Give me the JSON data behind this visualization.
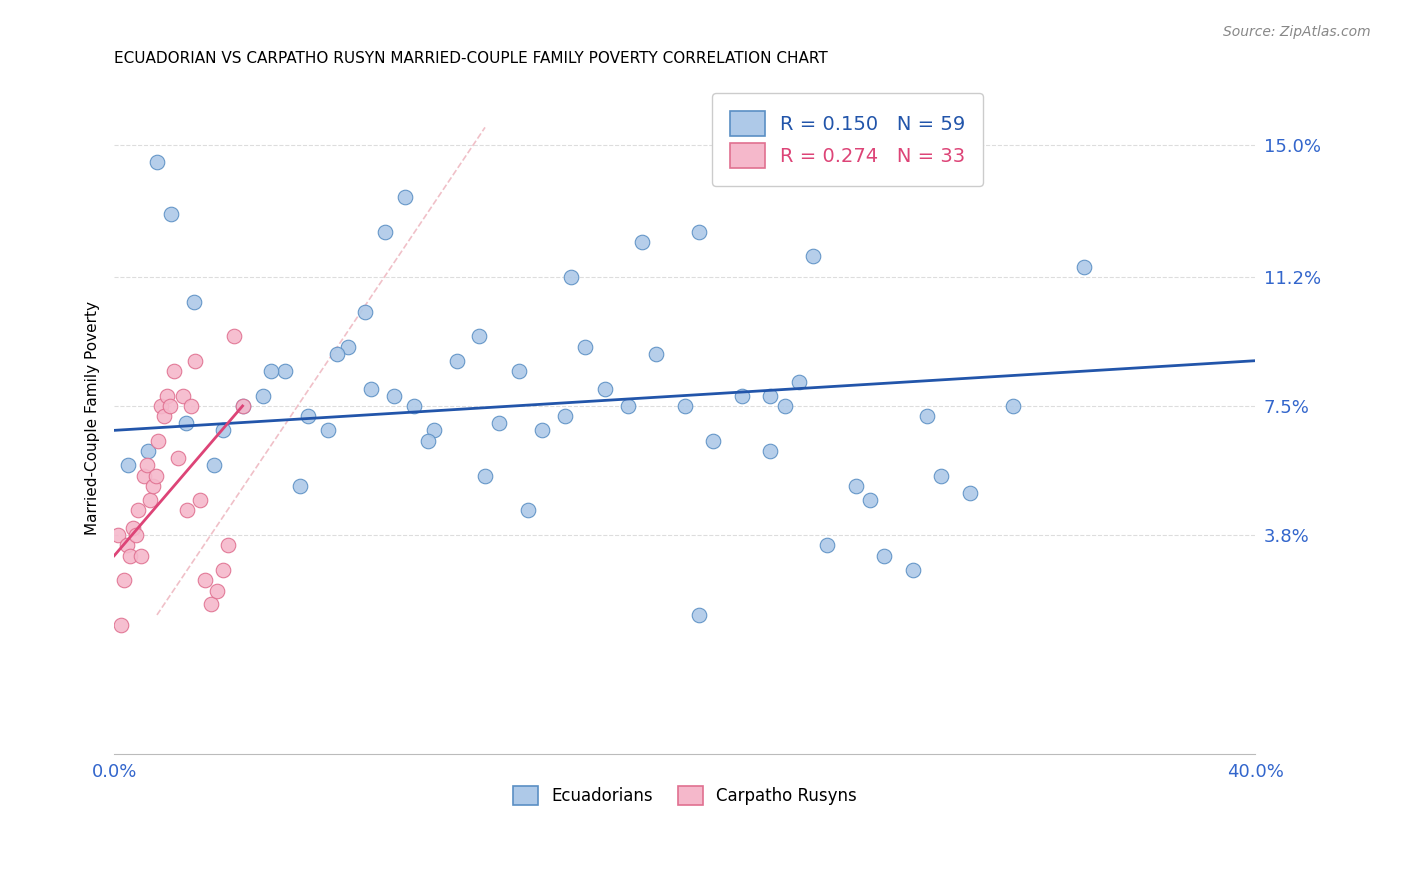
{
  "title": "ECUADORIAN VS CARPATHO RUSYN MARRIED-COUPLE FAMILY POVERTY CORRELATION CHART",
  "source": "Source: ZipAtlas.com",
  "ylabel": "Married-Couple Family Poverty",
  "xmin": 0.0,
  "xmax": 40.0,
  "ymin": -2.5,
  "ymax": 16.8,
  "ytick_positions": [
    3.8,
    7.5,
    11.2,
    15.0
  ],
  "ytick_labels": [
    "3.8%",
    "7.5%",
    "11.2%",
    "15.0%"
  ],
  "xtick_positions": [
    0.0,
    40.0
  ],
  "xtick_labels": [
    "0.0%",
    "40.0%"
  ],
  "ecuadorian_r": 0.15,
  "ecuadorian_n": 59,
  "carpatho_r": 0.274,
  "carpatho_n": 33,
  "ecuadorian_scatter_color": "#aec9e8",
  "ecuadorian_edge_color": "#5a8fc4",
  "carpatho_scatter_color": "#f5b8cb",
  "carpatho_edge_color": "#e07090",
  "trend_ecuadorian_color": "#2255aa",
  "trend_carpatho_color": "#dd4477",
  "diagonal_color": "#f0c0c8",
  "diagonal_linestyle": "--",
  "ecuadorian_x": [
    1.2,
    2.5,
    3.5,
    5.2,
    6.0,
    6.8,
    7.5,
    8.2,
    9.0,
    9.8,
    10.5,
    11.2,
    12.0,
    12.8,
    13.5,
    14.2,
    15.0,
    15.8,
    16.5,
    17.2,
    18.0,
    19.0,
    20.0,
    21.0,
    22.0,
    23.0,
    24.0,
    25.0,
    26.0,
    27.0,
    28.0,
    29.0,
    30.0,
    31.5,
    34.0,
    0.5,
    1.5,
    2.0,
    2.8,
    3.8,
    4.5,
    5.5,
    6.5,
    7.8,
    8.8,
    9.5,
    10.2,
    11.0,
    13.0,
    14.5,
    16.0,
    18.5,
    20.5,
    23.0,
    24.5,
    26.5,
    28.5,
    20.5,
    23.5
  ],
  "ecuadorian_y": [
    6.2,
    7.0,
    5.8,
    7.8,
    8.5,
    7.2,
    6.8,
    9.2,
    8.0,
    7.8,
    7.5,
    6.8,
    8.8,
    9.5,
    7.0,
    8.5,
    6.8,
    7.2,
    9.2,
    8.0,
    7.5,
    9.0,
    7.5,
    6.5,
    7.8,
    6.2,
    8.2,
    3.5,
    5.2,
    3.2,
    2.8,
    5.5,
    5.0,
    7.5,
    11.5,
    5.8,
    14.5,
    13.0,
    10.5,
    6.8,
    7.5,
    8.5,
    5.2,
    9.0,
    10.2,
    12.5,
    13.5,
    6.5,
    5.5,
    4.5,
    11.2,
    12.2,
    12.5,
    7.8,
    11.8,
    4.8,
    7.2,
    1.5,
    7.5
  ],
  "carpatho_x": [
    0.15,
    0.25,
    0.35,
    0.45,
    0.55,
    0.65,
    0.75,
    0.85,
    0.95,
    1.05,
    1.15,
    1.25,
    1.35,
    1.45,
    1.55,
    1.65,
    1.75,
    1.85,
    1.95,
    2.1,
    2.25,
    2.4,
    2.55,
    2.7,
    2.85,
    3.0,
    3.2,
    3.4,
    3.6,
    3.8,
    4.0,
    4.2,
    4.5
  ],
  "carpatho_y": [
    3.8,
    1.2,
    2.5,
    3.5,
    3.2,
    4.0,
    3.8,
    4.5,
    3.2,
    5.5,
    5.8,
    4.8,
    5.2,
    5.5,
    6.5,
    7.5,
    7.2,
    7.8,
    7.5,
    8.5,
    6.0,
    7.8,
    4.5,
    7.5,
    8.8,
    4.8,
    2.5,
    1.8,
    2.2,
    2.8,
    3.5,
    9.5,
    7.5
  ],
  "ecu_trend_x0": 0.0,
  "ecu_trend_x1": 40.0,
  "ecu_trend_y0": 6.8,
  "ecu_trend_y1": 8.8,
  "carp_trend_x0": 0.0,
  "carp_trend_x1": 4.5,
  "carp_trend_y0": 3.2,
  "carp_trend_y1": 7.5,
  "diag_x0": 1.5,
  "diag_x1": 13.0,
  "diag_y0": 1.5,
  "diag_y1": 15.5
}
